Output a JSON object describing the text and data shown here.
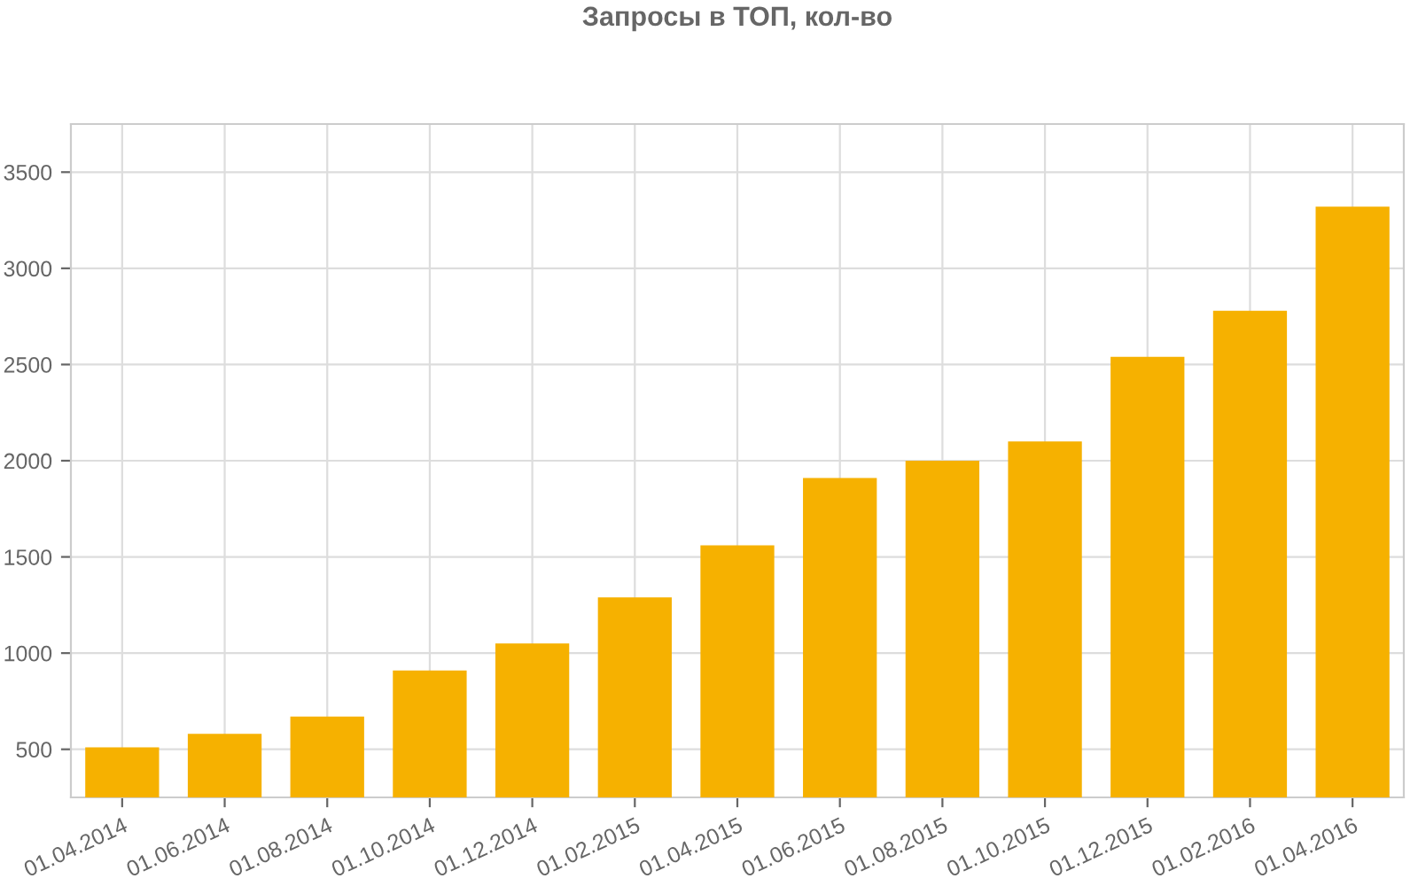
{
  "chart_data": {
    "type": "bar",
    "title": "Запросы в ТОП, кол-во",
    "categories": [
      "01.04.2014",
      "01.06.2014",
      "01.08.2014",
      "01.10.2014",
      "01.12.2014",
      "01.02.2015",
      "01.04.2015",
      "01.06.2015",
      "01.08.2015",
      "01.10.2015",
      "01.12.2015",
      "01.02.2016",
      "01.04.2016"
    ],
    "series": [
      {
        "color": "#f6b100",
        "values": [
          510,
          580,
          670,
          910,
          1050,
          1290,
          1560,
          1910,
          2000,
          2100,
          2540,
          2780,
          3320
        ]
      }
    ],
    "ylim": [
      250,
      3750
    ],
    "yticks": [
      500,
      1000,
      1500,
      2000,
      2500,
      3000,
      3500
    ],
    "grid": true
  }
}
